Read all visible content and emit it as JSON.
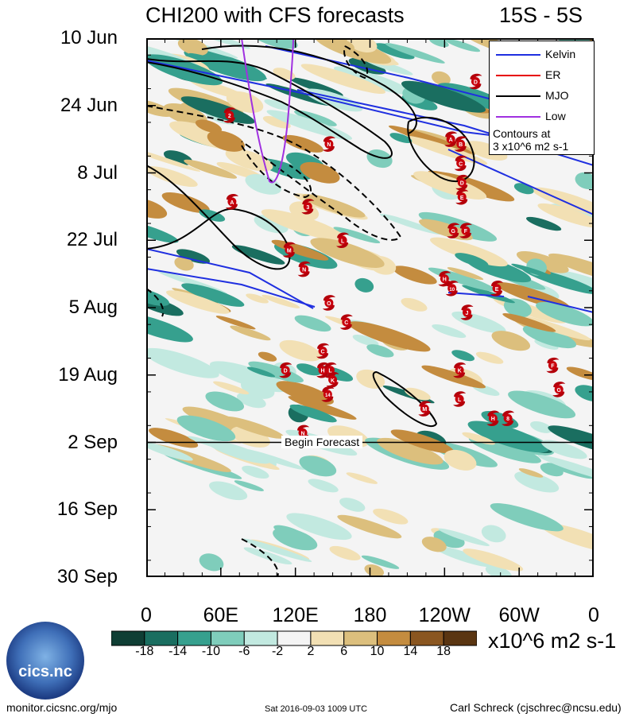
{
  "header": {
    "title": "CHI200 with CFS forecasts",
    "region": "15S - 5S"
  },
  "chart_data": {
    "type": "heatmap",
    "title": "CHI200 with CFS forecasts",
    "subtitle": "15S - 5S",
    "x_ticks": [
      "0",
      "60E",
      "120E",
      "180",
      "120W",
      "60W",
      "0"
    ],
    "y_ticks": [
      "10 Jun",
      "24 Jun",
      "8 Jul",
      "22 Jul",
      "5 Aug",
      "19 Aug",
      "2 Sep",
      "16 Sep",
      "30 Sep"
    ],
    "xlim": [
      0,
      360
    ],
    "ylim": [
      "2016-06-10",
      "2016-09-30"
    ],
    "forecast_start": "2016-09-02",
    "forecast_label": "Begin Forecast",
    "colorbar": {
      "labels": [
        "-18",
        "-14",
        "-10",
        "-6",
        "-2",
        "2",
        "6",
        "10",
        "14",
        "18"
      ],
      "colors": [
        "#0f3e34",
        "#1a6e60",
        "#36a08e",
        "#7fcdbb",
        "#c2e9e0",
        "#f4f4f4",
        "#f2e0b4",
        "#dcbf7d",
        "#c48c3f",
        "#8a5620",
        "#5a3512"
      ],
      "units": "x10^6 m2 s-1"
    },
    "legend": {
      "items": [
        {
          "name": "Kelvin",
          "color": "#1f2fe0"
        },
        {
          "name": "ER",
          "color": "#e60000"
        },
        {
          "name": "MJO",
          "color": "#000000"
        },
        {
          "name": "Low",
          "color": "#a030e0"
        }
      ],
      "note_line1": "Contours at",
      "note_line2": "3 x10^6 m2 s-1",
      "placement": "top-right"
    },
    "storms": [
      {
        "label": "D",
        "lon": 265,
        "date": "2016-06-19"
      },
      {
        "label": "2",
        "lon": 67,
        "date": "2016-06-26"
      },
      {
        "label": "A",
        "lon": 245,
        "date": "2016-07-01"
      },
      {
        "label": "B",
        "lon": 253,
        "date": "2016-07-02"
      },
      {
        "label": "N",
        "lon": 147,
        "date": "2016-07-02"
      },
      {
        "label": "C",
        "lon": 253,
        "date": "2016-07-06"
      },
      {
        "label": "D",
        "lon": 254,
        "date": "2016-07-10"
      },
      {
        "label": "E",
        "lon": 254,
        "date": "2016-07-13"
      },
      {
        "label": "A",
        "lon": 69,
        "date": "2016-07-14"
      },
      {
        "label": "3",
        "lon": 130,
        "date": "2016-07-15"
      },
      {
        "label": "G",
        "lon": 247,
        "date": "2016-07-20"
      },
      {
        "label": "F",
        "lon": 257,
        "date": "2016-07-20"
      },
      {
        "label": "L",
        "lon": 158,
        "date": "2016-07-22"
      },
      {
        "label": "M",
        "lon": 115,
        "date": "2016-07-24"
      },
      {
        "label": "N",
        "lon": 127,
        "date": "2016-07-28"
      },
      {
        "label": "H",
        "lon": 240,
        "date": "2016-07-30"
      },
      {
        "label": "10",
        "lon": 246,
        "date": "2016-08-01"
      },
      {
        "label": "E",
        "lon": 282,
        "date": "2016-08-01"
      },
      {
        "label": "O",
        "lon": 147,
        "date": "2016-08-04"
      },
      {
        "label": "J",
        "lon": 258,
        "date": "2016-08-06"
      },
      {
        "label": "C",
        "lon": 161,
        "date": "2016-08-08"
      },
      {
        "label": "C",
        "lon": 142,
        "date": "2016-08-14"
      },
      {
        "label": "F",
        "lon": 327,
        "date": "2016-08-17"
      },
      {
        "label": "D",
        "lon": 112,
        "date": "2016-08-18"
      },
      {
        "label": "H",
        "lon": 142,
        "date": "2016-08-18"
      },
      {
        "label": "L",
        "lon": 148,
        "date": "2016-08-18"
      },
      {
        "label": "K",
        "lon": 252,
        "date": "2016-08-18"
      },
      {
        "label": "K",
        "lon": 150,
        "date": "2016-08-20"
      },
      {
        "label": "G",
        "lon": 332,
        "date": "2016-08-22"
      },
      {
        "label": "14",
        "lon": 146,
        "date": "2016-08-23"
      },
      {
        "label": "L",
        "lon": 252,
        "date": "2016-08-24"
      },
      {
        "label": "M",
        "lon": 224,
        "date": "2016-08-26"
      },
      {
        "label": "H",
        "lon": 279,
        "date": "2016-08-28"
      },
      {
        "label": "8",
        "lon": 291,
        "date": "2016-08-28"
      },
      {
        "label": "N",
        "lon": 126,
        "date": "2016-08-31"
      }
    ]
  },
  "footer": {
    "website": "monitor.cicsnc.org/mjo",
    "timestamp": "Sat 2016-09-03 1009 UTC",
    "author": "Carl Schreck (cjschrec@ncsu.edu)",
    "logo_text": "cics.nc"
  }
}
